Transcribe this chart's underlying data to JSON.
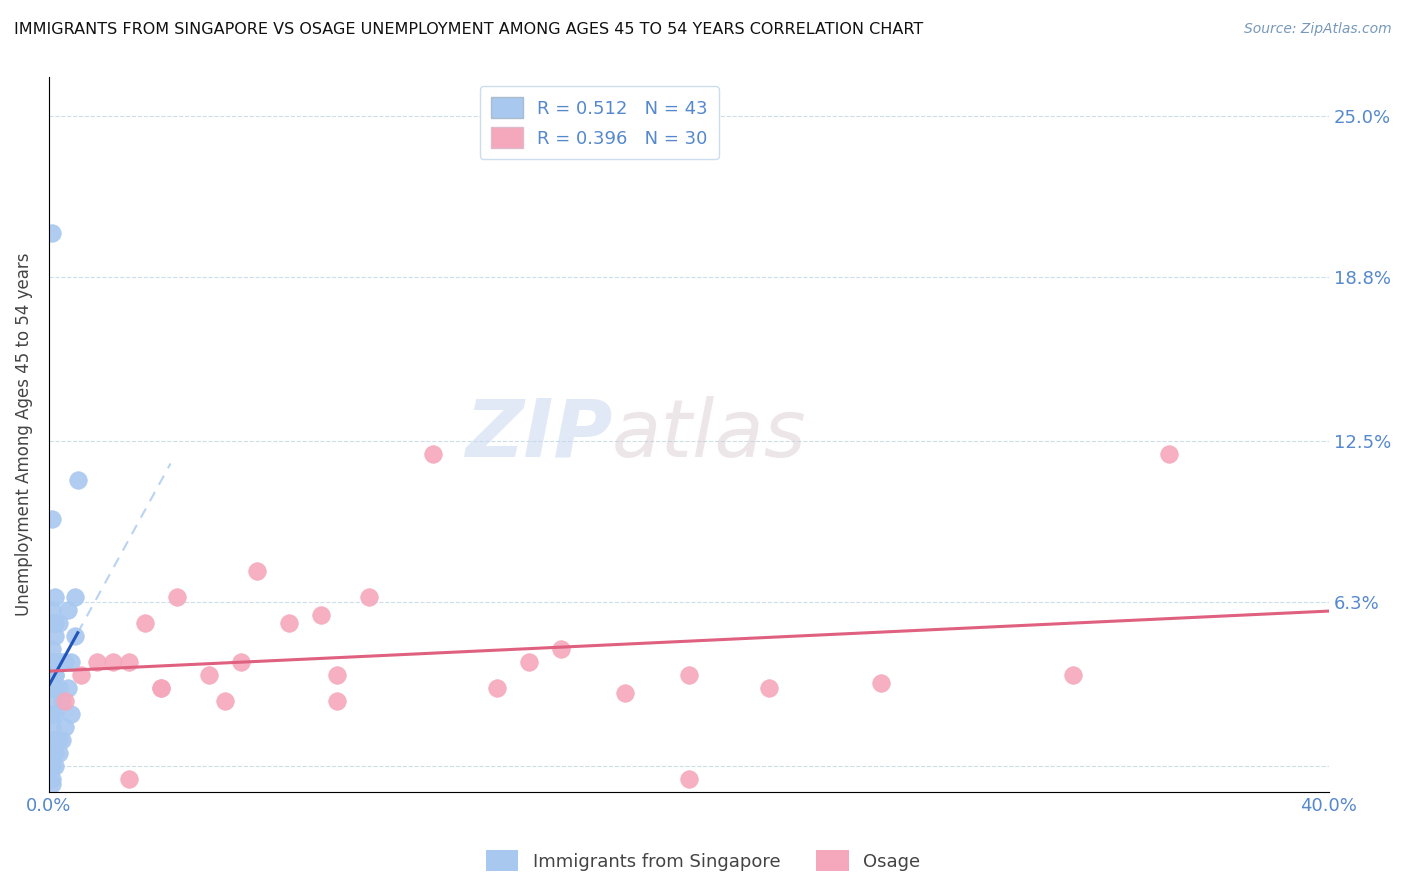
{
  "title": "IMMIGRANTS FROM SINGAPORE VS OSAGE UNEMPLOYMENT AMONG AGES 45 TO 54 YEARS CORRELATION CHART",
  "source": "Source: ZipAtlas.com",
  "ylabel": "Unemployment Among Ages 45 to 54 years",
  "xlim": [
    0.0,
    0.4
  ],
  "ylim": [
    -0.01,
    0.265
  ],
  "x_ticks": [
    0.0,
    0.1,
    0.2,
    0.3,
    0.4
  ],
  "y_ticks": [
    0.0,
    0.063,
    0.125,
    0.188,
    0.25
  ],
  "legend_blue_R": "0.512",
  "legend_blue_N": "43",
  "legend_pink_R": "0.396",
  "legend_pink_N": "30",
  "legend_label_blue": "Immigrants from Singapore",
  "legend_label_pink": "Osage",
  "blue_color": "#a8c8f0",
  "pink_color": "#f5a8bc",
  "blue_line_solid_color": "#2255bb",
  "pink_line_color": "#e06080",
  "watermark_zip": "ZIP",
  "watermark_atlas": "atlas",
  "blue_scatter_x": [
    0.001,
    0.001,
    0.001,
    0.001,
    0.001,
    0.001,
    0.001,
    0.001,
    0.001,
    0.001,
    0.001,
    0.001,
    0.001,
    0.002,
    0.002,
    0.002,
    0.002,
    0.002,
    0.002,
    0.002,
    0.002,
    0.002,
    0.003,
    0.003,
    0.003,
    0.003,
    0.003,
    0.004,
    0.004,
    0.004,
    0.005,
    0.005,
    0.006,
    0.006,
    0.007,
    0.007,
    0.008,
    0.008,
    0.009,
    0.001,
    0.001,
    0.002,
    0.002
  ],
  "blue_scatter_y": [
    0.0,
    0.01,
    0.02,
    0.025,
    0.03,
    0.035,
    0.04,
    0.045,
    0.055,
    0.06,
    -0.005,
    -0.007,
    0.015,
    0.0,
    0.005,
    0.01,
    0.02,
    0.03,
    0.04,
    0.05,
    0.055,
    0.065,
    0.005,
    0.01,
    0.03,
    0.04,
    0.055,
    0.01,
    0.025,
    0.04,
    0.015,
    0.04,
    0.03,
    0.06,
    0.02,
    0.04,
    0.05,
    0.065,
    0.11,
    0.095,
    0.205,
    0.035,
    0.035
  ],
  "pink_scatter_x": [
    0.005,
    0.01,
    0.015,
    0.02,
    0.025,
    0.03,
    0.035,
    0.04,
    0.05,
    0.055,
    0.065,
    0.075,
    0.085,
    0.09,
    0.1,
    0.12,
    0.14,
    0.16,
    0.18,
    0.2,
    0.225,
    0.025,
    0.035,
    0.06,
    0.09,
    0.15,
    0.2,
    0.26,
    0.32,
    0.35
  ],
  "pink_scatter_y": [
    0.025,
    0.035,
    0.04,
    0.04,
    0.04,
    0.055,
    0.03,
    0.065,
    0.035,
    0.025,
    0.075,
    0.055,
    0.058,
    0.035,
    0.065,
    0.12,
    0.03,
    0.045,
    0.028,
    0.035,
    0.03,
    -0.005,
    0.03,
    0.04,
    0.025,
    0.04,
    -0.005,
    0.032,
    0.035,
    0.12
  ],
  "figsize": [
    14.06,
    8.92
  ],
  "dpi": 100
}
